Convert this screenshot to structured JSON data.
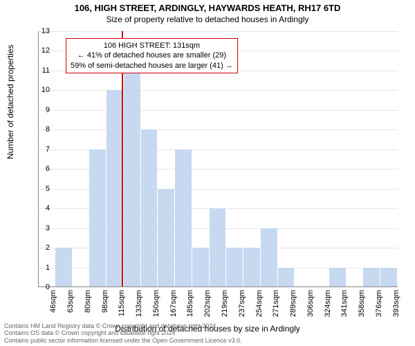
{
  "title": "106, HIGH STREET, ARDINGLY, HAYWARDS HEATH, RH17 6TD",
  "subtitle": "Size of property relative to detached houses in Ardingly",
  "chart": {
    "type": "histogram",
    "ylabel": "Number of detached properties",
    "xlabel": "Distribution of detached houses by size in Ardingly",
    "ylim": [
      0,
      13
    ],
    "ytick_step": 1,
    "x_categories": [
      "46sqm",
      "63sqm",
      "80sqm",
      "98sqm",
      "115sqm",
      "133sqm",
      "150sqm",
      "167sqm",
      "185sqm",
      "202sqm",
      "219sqm",
      "237sqm",
      "254sqm",
      "271sqm",
      "289sqm",
      "306sqm",
      "324sqm",
      "341sqm",
      "358sqm",
      "376sqm",
      "393sqm"
    ],
    "values": [
      0,
      2,
      0,
      7,
      10,
      11,
      8,
      5,
      7,
      2,
      4,
      2,
      2,
      3,
      1,
      0,
      0,
      1,
      0,
      1,
      1
    ],
    "bar_color": "#c6d9f1",
    "grid_color": "#e5e5e5",
    "background_color": "#ffffff",
    "marker_line_color": "#d00000",
    "marker_x_index": 4.9,
    "annotation": {
      "line1": "106 HIGH STREET: 131sqm",
      "line2": "← 41% of detached houses are smaller (29)",
      "line3": "59% of semi-detached houses are larger (41) →",
      "border_color": "#d00000",
      "fontsize": 11
    },
    "label_fontsize": 12,
    "tick_fontsize": 11
  },
  "license": {
    "line1": "Contains HM Land Registry data © Crown copyright and database right 2024.",
    "line2": "Contains OS data © Crown copyright and database right 2024",
    "line3": "Contains public sector information licensed under the Open Government Licence v3.0."
  }
}
